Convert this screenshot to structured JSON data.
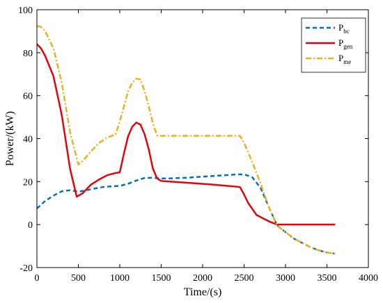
{
  "chart_data": {
    "type": "line",
    "xlabel": "Time/(s)",
    "ylabel": "Power/(kW)",
    "xlim": [
      0,
      4000
    ],
    "ylim": [
      -20,
      100
    ],
    "xticks": [
      "0",
      "500",
      "1000",
      "1500",
      "2000",
      "2500",
      "3000",
      "3500",
      "4000"
    ],
    "yticks": [
      "-20",
      "0",
      "20",
      "40",
      "60",
      "80",
      "100"
    ],
    "grid": false,
    "legend_position": "top-right",
    "series": [
      {
        "name": "P",
        "subscript": "bc",
        "color": "#0072BD",
        "style": "dashed",
        "x": [
          0,
          100,
          200,
          300,
          400,
          500,
          600,
          700,
          800,
          900,
          1000,
          1100,
          1200,
          1300,
          1400,
          1500,
          1600,
          1800,
          2000,
          2200,
          2400,
          2500,
          2600,
          2700,
          2800,
          2900,
          3000,
          3100,
          3200,
          3300,
          3400,
          3500,
          3600
        ],
        "y": [
          7.5,
          11,
          13.5,
          15.5,
          16,
          15.3,
          16,
          16.8,
          17.5,
          17.8,
          18,
          19,
          20.5,
          21.7,
          21.8,
          21.5,
          21.5,
          21.8,
          22.3,
          22.8,
          23.3,
          23.4,
          22,
          17,
          8,
          -0.5,
          -3.5,
          -6.5,
          -8.5,
          -10.5,
          -12,
          -13,
          -13.5
        ]
      },
      {
        "name": "P",
        "subscript": "gen",
        "color": "#E8000B",
        "style": "solid",
        "x": [
          0,
          50,
          100,
          200,
          300,
          400,
          480,
          550,
          650,
          750,
          850,
          950,
          1000,
          1050,
          1100,
          1150,
          1200,
          1250,
          1300,
          1350,
          1400,
          1450,
          1500,
          1800,
          2100,
          2450,
          2500,
          2550,
          2650,
          2800,
          2900,
          3000,
          3200,
          3400,
          3600
        ],
        "y": [
          84,
          82,
          78.5,
          69,
          51,
          26,
          13,
          14.5,
          18.5,
          21,
          23,
          24,
          24.3,
          33,
          41,
          45.5,
          47.5,
          46.5,
          42,
          35,
          26,
          21.5,
          20.3,
          19.5,
          18.7,
          17.5,
          14,
          10,
          4.5,
          1.5,
          0,
          0,
          0,
          0,
          0
        ]
      },
      {
        "name": "P",
        "subscript": "me",
        "color": "#EDB120",
        "style": "dashdot",
        "x": [
          0,
          50,
          100,
          200,
          300,
          400,
          500,
          550,
          650,
          750,
          850,
          950,
          1000,
          1050,
          1100,
          1150,
          1200,
          1250,
          1300,
          1350,
          1400,
          1450,
          1500,
          2000,
          2450,
          2500,
          2600,
          2700,
          2800,
          2900,
          3000,
          3100,
          3200,
          3300,
          3400,
          3500,
          3600
        ],
        "y": [
          92.5,
          92,
          90,
          82,
          66,
          43,
          28,
          29.5,
          34,
          38,
          40.5,
          42,
          48,
          55,
          62,
          66,
          68,
          67.5,
          62,
          55,
          47,
          41.5,
          41.3,
          41.3,
          41.3,
          38,
          29,
          19,
          8,
          -0.5,
          -3.5,
          -6.5,
          -8.5,
          -10.5,
          -12,
          -13,
          -13.5
        ]
      }
    ]
  }
}
